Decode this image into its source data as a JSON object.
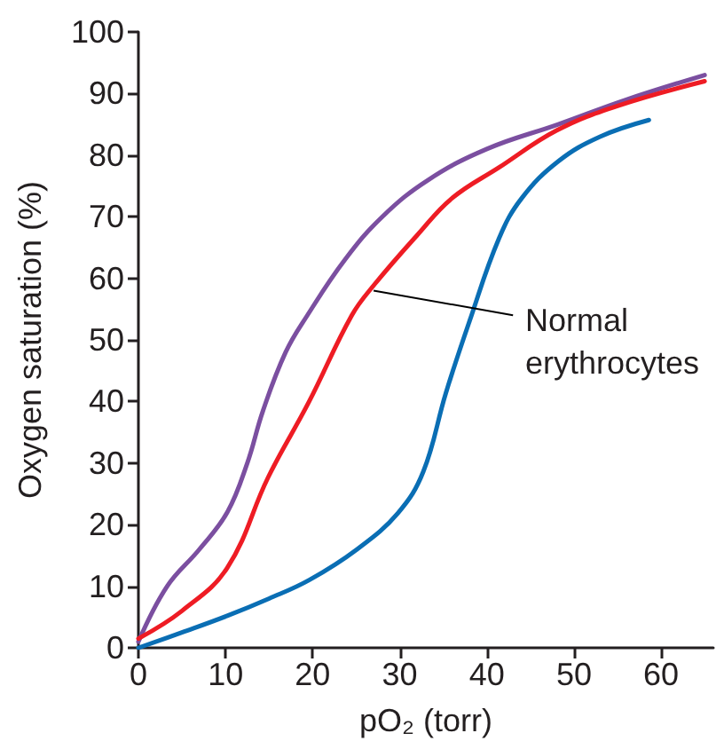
{
  "chart_data": {
    "type": "line",
    "xlabel": "pO₂ (torr)",
    "ylabel": "Oxygen saturation (%)",
    "xlim": [
      0,
      66
    ],
    "ylim": [
      0,
      100
    ],
    "xticks": [
      0,
      10,
      20,
      30,
      40,
      50,
      60
    ],
    "yticks": [
      0,
      10,
      20,
      30,
      40,
      50,
      60,
      70,
      80,
      90,
      100
    ],
    "grid": false,
    "marker": "none",
    "line_style": "solid",
    "series": [
      {
        "color": "#7b4fa0",
        "x": [
          0,
          3.3,
          7,
          10.2,
          12.5,
          14.3,
          16.9,
          19.4,
          23.7,
          28,
          33.3,
          40,
          48.2,
          56,
          65
        ],
        "values": [
          1,
          10,
          16,
          22,
          30,
          38.5,
          48,
          54,
          63,
          70,
          76,
          81,
          85,
          89,
          93
        ]
      },
      {
        "color": "#ee1c24",
        "x": [
          0,
          5,
          10.2,
          14.9,
          19.6,
          24.5,
          27.1,
          32,
          36,
          41.4,
          48,
          55,
          65
        ],
        "values": [
          1.5,
          6,
          13,
          27.7,
          40,
          54,
          59,
          67,
          73,
          78,
          84,
          88,
          92
        ]
      },
      {
        "color": "#0a6eb4",
        "x": [
          0,
          5,
          10.2,
          15,
          19.6,
          25.1,
          29.8,
          32.7,
          35.3,
          38,
          41.4,
          44,
          48.2,
          53,
          58.6
        ],
        "values": [
          0,
          2.5,
          5.2,
          8,
          11,
          16,
          21.9,
          28.6,
          41.4,
          53,
          66.5,
          73,
          79,
          83,
          85.7
        ]
      }
    ],
    "annotations": [
      {
        "text": "Normal erythrocytes",
        "x": 27,
        "y": 58
      }
    ]
  }
}
